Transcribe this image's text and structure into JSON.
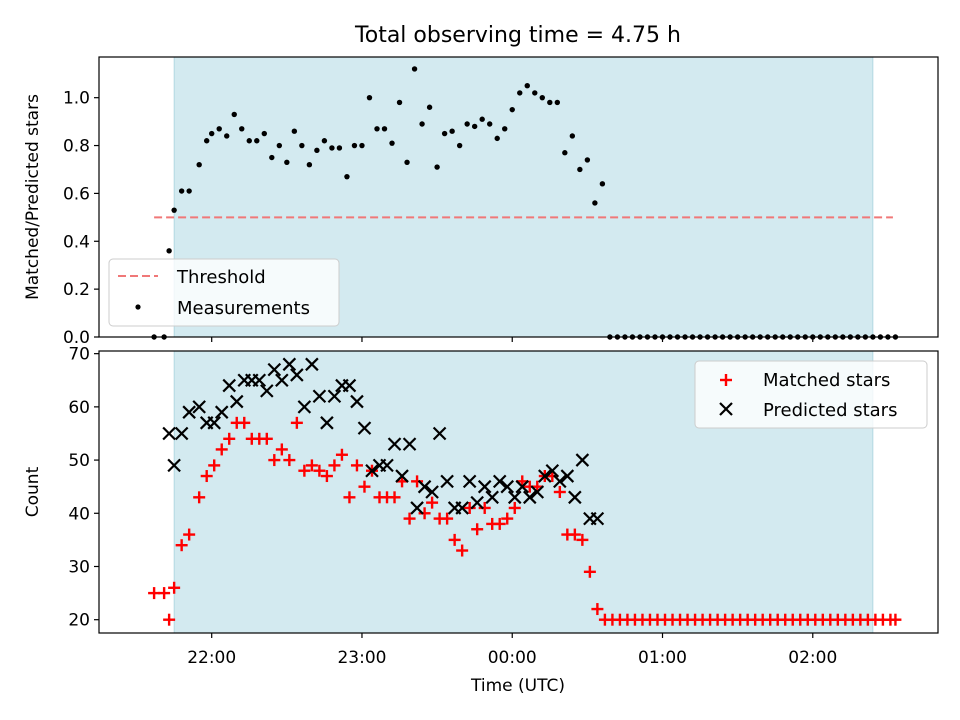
{
  "chart_data": [
    {
      "type": "scatter",
      "title": "Total observing time = 4.75 h",
      "xlabel": "",
      "ylabel": "Matched/Predicted stars",
      "ylim": [
        0,
        1.17
      ],
      "yticks": [
        0.0,
        0.2,
        0.4,
        0.6,
        0.8,
        1.0
      ],
      "ytick_labels": [
        "0.0",
        "0.2",
        "0.4",
        "0.6",
        "0.8",
        "1.0"
      ],
      "xlim": [
        "21:15",
        "02:50"
      ],
      "grid": false,
      "legend_position": "lower-left",
      "observing_window": {
        "start": "21:45",
        "end": "02:24",
        "color": "#d3eaf0"
      },
      "threshold": {
        "name": "Threshold",
        "y": 0.5,
        "x_start": "21:37",
        "x_end": "02:32",
        "color": "#f07878",
        "style": "dashed"
      },
      "series": [
        {
          "name": "Measurements",
          "marker": "dot",
          "color": "#000000",
          "x": [
            "21:37",
            "21:41",
            "21:43",
            "21:45",
            "21:48",
            "21:51",
            "21:55",
            "21:58",
            "22:00",
            "22:03",
            "22:06",
            "22:09",
            "22:12",
            "22:15",
            "22:18",
            "22:21",
            "22:24",
            "22:27",
            "22:30",
            "22:33",
            "22:36",
            "22:39",
            "22:42",
            "22:45",
            "22:48",
            "22:51",
            "22:54",
            "22:57",
            "23:00",
            "23:03",
            "23:06",
            "23:09",
            "23:12",
            "23:15",
            "23:18",
            "23:21",
            "23:24",
            "23:27",
            "23:30",
            "23:33",
            "23:36",
            "23:39",
            "23:42",
            "23:45",
            "23:48",
            "23:51",
            "23:54",
            "23:57",
            "00:00",
            "00:03",
            "00:06",
            "00:09",
            "00:12",
            "00:15",
            "00:18",
            "00:21",
            "00:24",
            "00:27",
            "00:30",
            "00:33",
            "00:36",
            "00:39",
            "00:42",
            "00:45",
            "00:48",
            "00:51",
            "00:54",
            "00:57",
            "01:00",
            "01:03",
            "01:06",
            "01:09",
            "01:12",
            "01:15",
            "01:18",
            "01:21",
            "01:24",
            "01:27",
            "01:30",
            "01:33",
            "01:36",
            "01:39",
            "01:42",
            "01:45",
            "01:48",
            "01:51",
            "01:54",
            "01:57",
            "02:00",
            "02:03",
            "02:06",
            "02:09",
            "02:12",
            "02:15",
            "02:18",
            "02:21",
            "02:24",
            "02:27",
            "02:30",
            "02:33"
          ],
          "values": [
            0.0,
            0.0,
            0.36,
            0.53,
            0.61,
            0.61,
            0.72,
            0.82,
            0.85,
            0.87,
            0.84,
            0.93,
            0.87,
            0.82,
            0.82,
            0.85,
            0.75,
            0.8,
            0.73,
            0.86,
            0.8,
            0.72,
            0.78,
            0.82,
            0.79,
            0.79,
            0.67,
            0.8,
            0.8,
            1.0,
            0.87,
            0.87,
            0.81,
            0.98,
            0.73,
            1.12,
            0.89,
            0.96,
            0.71,
            0.85,
            0.86,
            0.8,
            0.89,
            0.88,
            0.91,
            0.89,
            0.83,
            0.87,
            0.95,
            1.02,
            1.05,
            1.02,
            1.0,
            0.98,
            0.98,
            0.77,
            0.84,
            0.7,
            0.74,
            0.56,
            0.64,
            0.0,
            0.0,
            0.0,
            0.0,
            0.0,
            0.0,
            0.0,
            0.0,
            0.0,
            0.0,
            0.0,
            0.0,
            0.0,
            0.0,
            0.0,
            0.0,
            0.0,
            0.0,
            0.0,
            0.0,
            0.0,
            0.0,
            0.0,
            0.0,
            0.0,
            0.0,
            0.0,
            0.0,
            0.0,
            0.0,
            0.0,
            0.0,
            0.0,
            0.0,
            0.0,
            0.0,
            0.0,
            0.0,
            0.0
          ]
        }
      ]
    },
    {
      "type": "scatter",
      "title": "",
      "xlabel": "Time (UTC)",
      "ylabel": "Count",
      "ylim": [
        17.5,
        70.5
      ],
      "yticks": [
        20,
        30,
        40,
        50,
        60,
        70
      ],
      "ytick_labels": [
        "20",
        "30",
        "40",
        "50",
        "60",
        "70"
      ],
      "xlim": [
        "21:15",
        "02:50"
      ],
      "xticks": [
        "22:00",
        "23:00",
        "00:00",
        "01:00",
        "02:00"
      ],
      "grid": false,
      "legend_position": "upper-right",
      "observing_window": {
        "start": "21:45",
        "end": "02:24",
        "color": "#d3eaf0"
      },
      "series": [
        {
          "name": "Matched stars",
          "marker": "plus",
          "color": "#ff0000",
          "x": [
            "21:37",
            "21:41",
            "21:43",
            "21:45",
            "21:48",
            "21:51",
            "21:55",
            "21:58",
            "22:01",
            "22:04",
            "22:07",
            "22:10",
            "22:13",
            "22:16",
            "22:19",
            "22:22",
            "22:25",
            "22:28",
            "22:31",
            "22:34",
            "22:37",
            "22:40",
            "22:43",
            "22:46",
            "22:49",
            "22:52",
            "22:55",
            "22:58",
            "23:01",
            "23:04",
            "23:07",
            "23:10",
            "23:13",
            "23:16",
            "23:19",
            "23:22",
            "23:25",
            "23:28",
            "23:31",
            "23:34",
            "23:37",
            "23:40",
            "23:43",
            "23:46",
            "23:49",
            "23:52",
            "23:55",
            "23:58",
            "00:01",
            "00:04",
            "00:07",
            "00:10",
            "00:13",
            "00:16",
            "00:19",
            "00:22",
            "00:25",
            "00:28",
            "00:31",
            "00:34",
            "00:37",
            "00:40",
            "00:43",
            "00:46",
            "00:49",
            "00:52",
            "00:55",
            "00:58",
            "01:01",
            "01:04",
            "01:07",
            "01:10",
            "01:13",
            "01:16",
            "01:19",
            "01:22",
            "01:25",
            "01:28",
            "01:31",
            "01:34",
            "01:37",
            "01:40",
            "01:43",
            "01:46",
            "01:49",
            "01:52",
            "01:55",
            "01:58",
            "02:01",
            "02:04",
            "02:07",
            "02:10",
            "02:13",
            "02:16",
            "02:19",
            "02:22",
            "02:25",
            "02:28",
            "02:31",
            "02:33"
          ],
          "values": [
            25,
            25,
            20,
            26,
            34,
            36,
            43,
            47,
            49,
            52,
            54,
            57,
            57,
            54,
            54,
            54,
            50,
            52,
            50,
            57,
            48,
            49,
            48,
            47,
            49,
            51,
            43,
            49,
            45,
            48,
            43,
            43,
            43,
            46,
            39,
            46,
            40,
            42,
            39,
            39,
            35,
            33,
            41,
            37,
            41,
            38,
            38,
            39,
            41,
            46,
            45,
            45,
            47,
            47,
            44,
            36,
            36,
            35,
            29,
            22,
            20,
            20,
            20,
            20,
            20,
            20,
            20,
            20,
            20,
            20,
            20,
            20,
            20,
            20,
            20,
            20,
            20,
            20,
            20,
            20,
            20,
            20,
            20,
            20,
            20,
            20,
            20,
            20,
            20,
            20,
            20,
            20,
            20,
            20,
            20,
            20,
            20,
            20,
            20,
            20
          ]
        },
        {
          "name": "Predicted stars",
          "marker": "x",
          "color": "#000000",
          "x": [
            "21:43",
            "21:45",
            "21:48",
            "21:51",
            "21:55",
            "21:58",
            "22:01",
            "22:04",
            "22:07",
            "22:10",
            "22:13",
            "22:16",
            "22:19",
            "22:22",
            "22:25",
            "22:28",
            "22:31",
            "22:34",
            "22:37",
            "22:40",
            "22:43",
            "22:46",
            "22:49",
            "22:52",
            "22:55",
            "22:58",
            "23:01",
            "23:04",
            "23:07",
            "23:10",
            "23:13",
            "23:16",
            "23:19",
            "23:22",
            "23:25",
            "23:28",
            "23:31",
            "23:34",
            "23:37",
            "23:40",
            "23:43",
            "23:46",
            "23:49",
            "23:52",
            "23:55",
            "23:58",
            "00:01",
            "00:04",
            "00:07",
            "00:10",
            "00:13",
            "00:16",
            "00:19",
            "00:22",
            "00:25",
            "00:28",
            "00:31",
            "00:34"
          ],
          "values": [
            55,
            49,
            55,
            59,
            60,
            57,
            57,
            59,
            64,
            61,
            65,
            65,
            65,
            63,
            67,
            65,
            68,
            66,
            60,
            68,
            62,
            57,
            62,
            64,
            64,
            61,
            56,
            48,
            49,
            49,
            53,
            47,
            53,
            41,
            45,
            44,
            55,
            46,
            41,
            41,
            46,
            42,
            45,
            43,
            46,
            45,
            43,
            45,
            43,
            44,
            47,
            48,
            46,
            47,
            43,
            50,
            39,
            39
          ]
        }
      ]
    }
  ]
}
